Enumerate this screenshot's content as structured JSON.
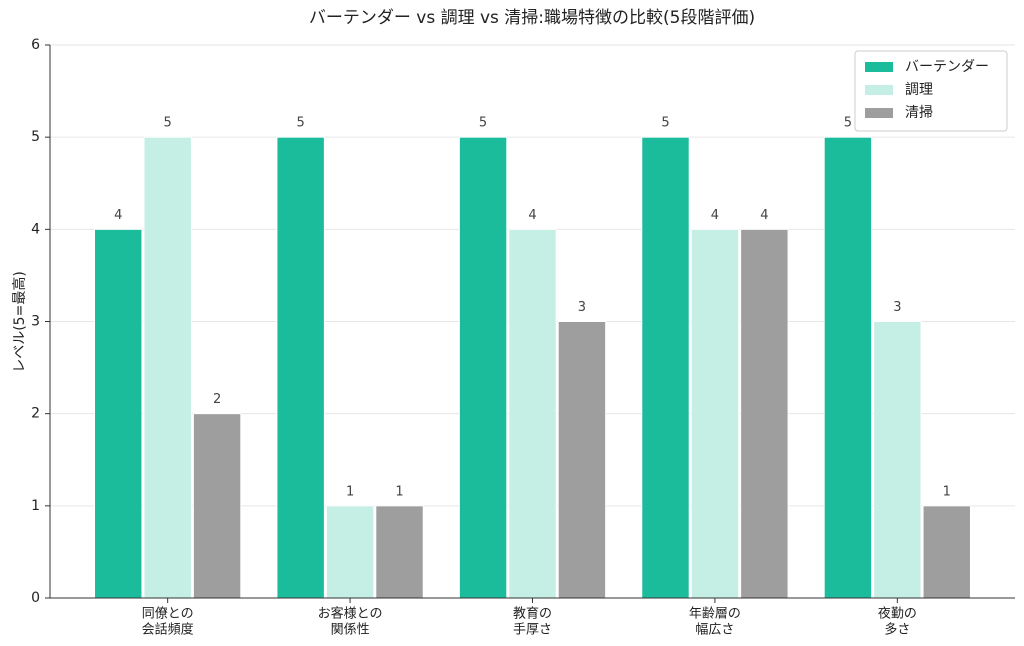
{
  "chart_data": {
    "type": "bar",
    "title": "バーテンダー vs 調理 vs 清掃:職場特徴の比較(5段階評価)",
    "y_label": "レベル(5=最高)",
    "categories": [
      [
        "同僚との",
        "会話頻度"
      ],
      [
        "お客様との",
        "関係性"
      ],
      [
        "教育の",
        "手厚さ"
      ],
      [
        "年齢層の",
        "幅広さ"
      ],
      [
        "夜勤の",
        "多さ"
      ]
    ],
    "series": [
      {
        "name": "バーテンダー",
        "color": "#1abc9c",
        "values": [
          4,
          5,
          5,
          5,
          5
        ]
      },
      {
        "name": "調理",
        "color": "#c5efe5",
        "values": [
          5,
          1,
          4,
          4,
          3
        ]
      },
      {
        "name": "清掃",
        "color": "#9e9e9e",
        "values": [
          2,
          1,
          3,
          4,
          1
        ]
      }
    ],
    "ylim": [
      0,
      6
    ],
    "yticks": [
      0,
      1,
      2,
      3,
      4,
      5,
      6
    ],
    "grid": true,
    "legend": "upper right"
  }
}
